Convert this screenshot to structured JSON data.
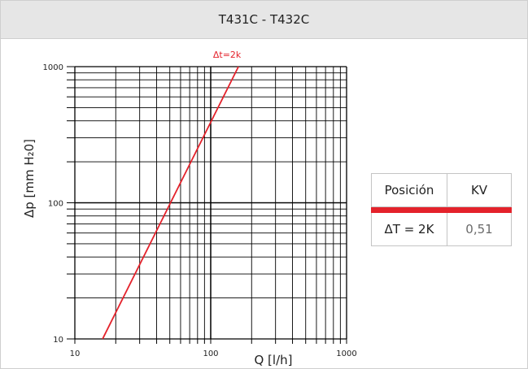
{
  "header": {
    "title": "T431C - T432C"
  },
  "chart_data": {
    "type": "line",
    "title": "T431C - T432C",
    "xlabel": "Q [l/h]",
    "ylabel": "Δp [mm H₂0]",
    "xscale": "log",
    "yscale": "log",
    "xlim": [
      10,
      1000
    ],
    "ylim": [
      10,
      1000
    ],
    "x_ticks": [
      "10",
      "100",
      "1000"
    ],
    "y_ticks": [
      "10",
      "100",
      "1000"
    ],
    "grid": true,
    "series": [
      {
        "name": "Δt=2k",
        "color": "#e4222b",
        "x": [
          16,
          160
        ],
        "y": [
          10,
          1000
        ]
      }
    ]
  },
  "table": {
    "headers": [
      "Posición",
      "KV"
    ],
    "rows": [
      [
        "ΔT = 2K",
        "0,51"
      ]
    ]
  },
  "colors": {
    "accent": "#e4222b",
    "header_bg": "#e6e6e6",
    "grid": "#000000"
  }
}
